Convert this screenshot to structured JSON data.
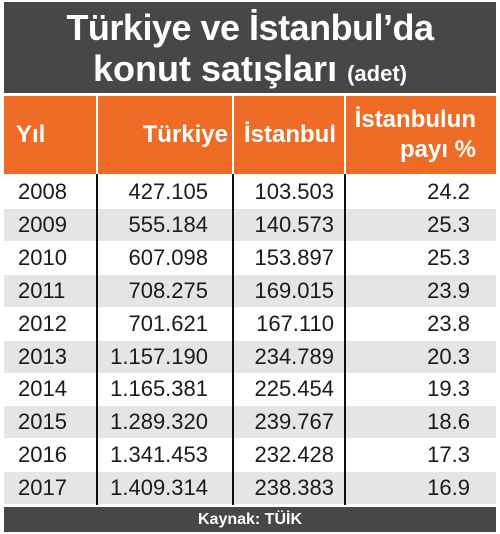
{
  "title": {
    "line1": "Türkiye ve İstanbul’da",
    "line2": "konut satışları",
    "unit": "(adet)"
  },
  "headers": {
    "year": "Yıl",
    "turkiye": "Türkiye",
    "istanbul": "İstanbul",
    "share_line1": "İstanbulun",
    "share_line2": "payı %"
  },
  "source": "Kaynak: TÜİK",
  "colors": {
    "title_bg": "#474747",
    "header_bg": "#ef6c27",
    "row_alt_bg": "#e5e5e5"
  },
  "chart_data": {
    "type": "table",
    "title": "Türkiye ve İstanbul’da konut satışları (adet)",
    "columns": [
      "Yıl",
      "Türkiye",
      "İstanbul",
      "İstanbulun payı %"
    ],
    "rows": [
      [
        "2008",
        "427.105",
        "103.503",
        "24.2"
      ],
      [
        "2009",
        "555.184",
        "140.573",
        "25.3"
      ],
      [
        "2010",
        "607.098",
        "153.897",
        "25.3"
      ],
      [
        "2011",
        "708.275",
        "169.015",
        "23.9"
      ],
      [
        "2012",
        "701.621",
        "167.110",
        "23.8"
      ],
      [
        "2013",
        "1.157.190",
        "234.789",
        "20.3"
      ],
      [
        "2014",
        "1.165.381",
        "225.454",
        "19.3"
      ],
      [
        "2015",
        "1.289.320",
        "239.767",
        "18.6"
      ],
      [
        "2016",
        "1.341.453",
        "232.428",
        "17.3"
      ],
      [
        "2017",
        "1.409.314",
        "238.383",
        "16.9"
      ]
    ]
  }
}
